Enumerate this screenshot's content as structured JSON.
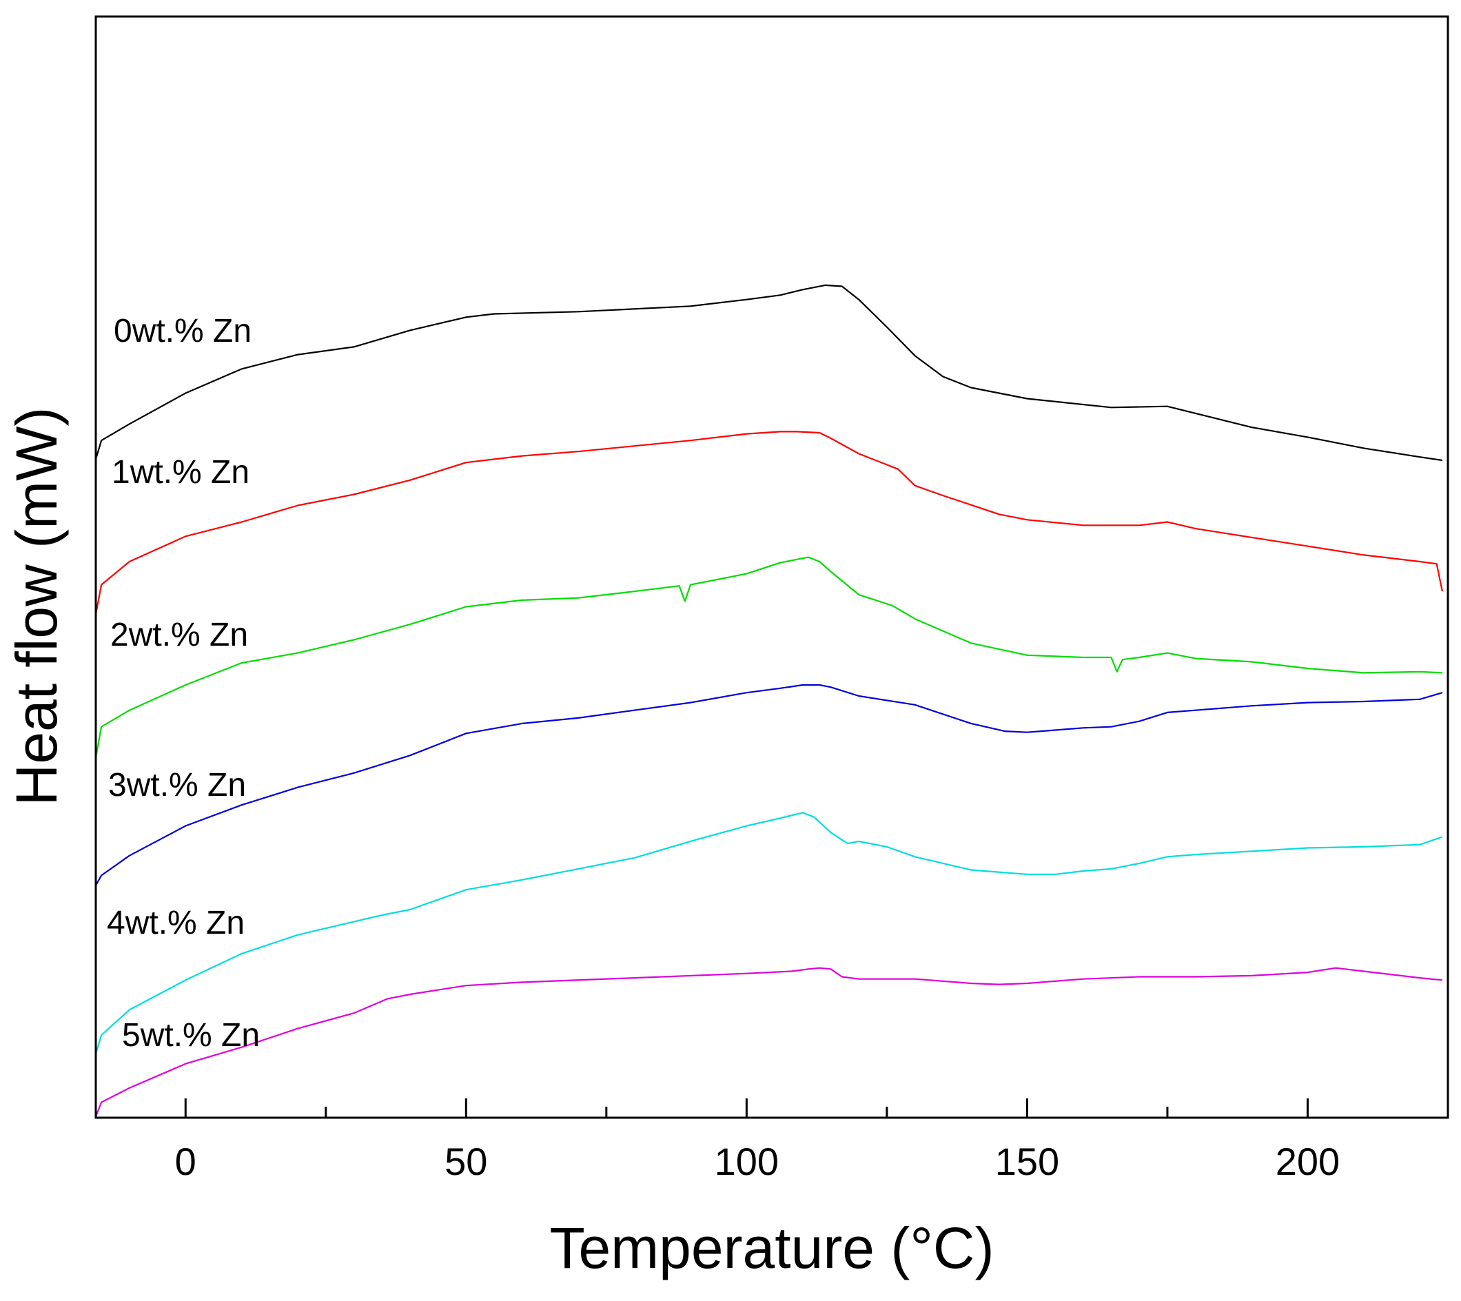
{
  "chart_data": {
    "type": "line",
    "title": "",
    "xlabel": "Temperature (°C)",
    "ylabel": "Heat flow (mW)",
    "xlim": [
      -16,
      225
    ],
    "ylim": [
      0,
      1
    ],
    "x_major_ticks": [
      0,
      50,
      100,
      150,
      200
    ],
    "x_tick_labels": [
      "0",
      "50",
      "100",
      "150",
      "200"
    ],
    "x_minor_ticks": [
      25,
      75,
      125,
      175
    ],
    "y_ticks_shown": false,
    "grid": false,
    "legend": "inline labels at left of each curve",
    "series": [
      {
        "name": "0wt.% Zn",
        "color": "#000000",
        "x": [
          -16,
          -15,
          -10,
          0,
          10,
          20,
          30,
          40,
          50,
          55,
          70,
          90,
          100,
          106,
          110,
          114,
          117,
          120,
          125,
          130,
          135,
          140,
          150,
          165,
          175,
          190,
          200,
          210,
          220,
          224
        ],
        "y": [
          0.598,
          0.615,
          0.63,
          0.658,
          0.68,
          0.693,
          0.7,
          0.715,
          0.727,
          0.73,
          0.732,
          0.737,
          0.743,
          0.747,
          0.752,
          0.756,
          0.755,
          0.743,
          0.718,
          0.692,
          0.673,
          0.663,
          0.653,
          0.645,
          0.646,
          0.627,
          0.618,
          0.608,
          0.6,
          0.597
        ]
      },
      {
        "name": "1wt.% Zn",
        "color": "#ff0000",
        "x": [
          -16,
          -15,
          -10,
          0,
          10,
          20,
          30,
          40,
          50,
          60,
          70,
          80,
          90,
          100,
          106,
          109,
          113,
          115,
          120,
          127,
          130,
          135,
          145,
          150,
          160,
          170,
          175,
          180,
          190,
          200,
          210,
          220,
          223,
          224
        ],
        "y": [
          0.457,
          0.484,
          0.505,
          0.528,
          0.541,
          0.556,
          0.566,
          0.579,
          0.595,
          0.601,
          0.605,
          0.61,
          0.615,
          0.621,
          0.623,
          0.623,
          0.622,
          0.617,
          0.603,
          0.589,
          0.574,
          0.565,
          0.548,
          0.543,
          0.538,
          0.538,
          0.541,
          0.535,
          0.527,
          0.519,
          0.511,
          0.505,
          0.503,
          0.478
        ]
      },
      {
        "name": "2wt.% Zn",
        "color": "#00dd00",
        "x": [
          -16,
          -15,
          -10,
          0,
          10,
          20,
          30,
          40,
          50,
          60,
          70,
          80,
          88,
          89,
          90,
          100,
          106,
          111,
          113,
          115,
          120,
          126,
          130,
          140,
          150,
          160,
          165,
          166,
          167,
          170,
          175,
          180,
          190,
          200,
          210,
          220,
          224
        ],
        "y": [
          0.327,
          0.355,
          0.37,
          0.393,
          0.413,
          0.422,
          0.434,
          0.448,
          0.464,
          0.47,
          0.472,
          0.478,
          0.483,
          0.469,
          0.484,
          0.494,
          0.504,
          0.509,
          0.505,
          0.496,
          0.475,
          0.465,
          0.453,
          0.431,
          0.42,
          0.418,
          0.418,
          0.405,
          0.416,
          0.418,
          0.422,
          0.417,
          0.414,
          0.408,
          0.404,
          0.405,
          0.404
        ]
      },
      {
        "name": "3wt.% Zn",
        "color": "#0000dd",
        "x": [
          -16,
          -15,
          -10,
          0,
          10,
          20,
          30,
          40,
          50,
          60,
          70,
          80,
          90,
          100,
          106,
          110,
          113,
          115,
          120,
          130,
          140,
          146,
          150,
          155,
          160,
          165,
          170,
          175,
          180,
          190,
          200,
          210,
          220,
          224
        ],
        "y": [
          0.211,
          0.22,
          0.238,
          0.265,
          0.284,
          0.3,
          0.313,
          0.329,
          0.349,
          0.358,
          0.363,
          0.37,
          0.377,
          0.386,
          0.39,
          0.393,
          0.393,
          0.391,
          0.383,
          0.375,
          0.358,
          0.351,
          0.35,
          0.352,
          0.354,
          0.355,
          0.36,
          0.368,
          0.37,
          0.374,
          0.377,
          0.378,
          0.38,
          0.386
        ]
      },
      {
        "name": "4wt.% Zn",
        "color": "#00dddd",
        "x": [
          -16,
          -15,
          -10,
          0,
          10,
          20,
          30,
          35,
          40,
          50,
          60,
          70,
          80,
          90,
          100,
          106,
          110,
          112,
          115,
          118,
          120,
          125,
          130,
          140,
          150,
          155,
          160,
          165,
          170,
          175,
          180,
          190,
          200,
          210,
          220,
          224
        ],
        "y": [
          0.058,
          0.075,
          0.098,
          0.125,
          0.149,
          0.166,
          0.178,
          0.184,
          0.189,
          0.207,
          0.216,
          0.226,
          0.236,
          0.251,
          0.265,
          0.272,
          0.277,
          0.273,
          0.259,
          0.249,
          0.251,
          0.246,
          0.237,
          0.225,
          0.221,
          0.221,
          0.224,
          0.226,
          0.231,
          0.237,
          0.239,
          0.242,
          0.245,
          0.246,
          0.248,
          0.255
        ]
      },
      {
        "name": "5wt.% Zn",
        "color": "#dd00dd",
        "x": [
          -16,
          -15,
          -10,
          0,
          10,
          20,
          30,
          36,
          40,
          50,
          60,
          80,
          100,
          108,
          111,
          113,
          115,
          117,
          120,
          130,
          140,
          145,
          150,
          160,
          170,
          180,
          190,
          200,
          205,
          210,
          220,
          224
        ],
        "y": [
          0.001,
          0.014,
          0.027,
          0.049,
          0.064,
          0.081,
          0.095,
          0.108,
          0.112,
          0.12,
          0.123,
          0.127,
          0.131,
          0.133,
          0.135,
          0.136,
          0.135,
          0.128,
          0.126,
          0.126,
          0.122,
          0.121,
          0.122,
          0.126,
          0.128,
          0.128,
          0.129,
          0.132,
          0.136,
          0.133,
          0.127,
          0.125
        ]
      }
    ]
  },
  "labels": {
    "l0": "0wt.% Zn",
    "l1": "1wt.% Zn",
    "l2": "2wt.% Zn",
    "l3": "3wt.% Zn",
    "l4": "4wt.% Zn",
    "l5": "5wt.% Zn"
  }
}
